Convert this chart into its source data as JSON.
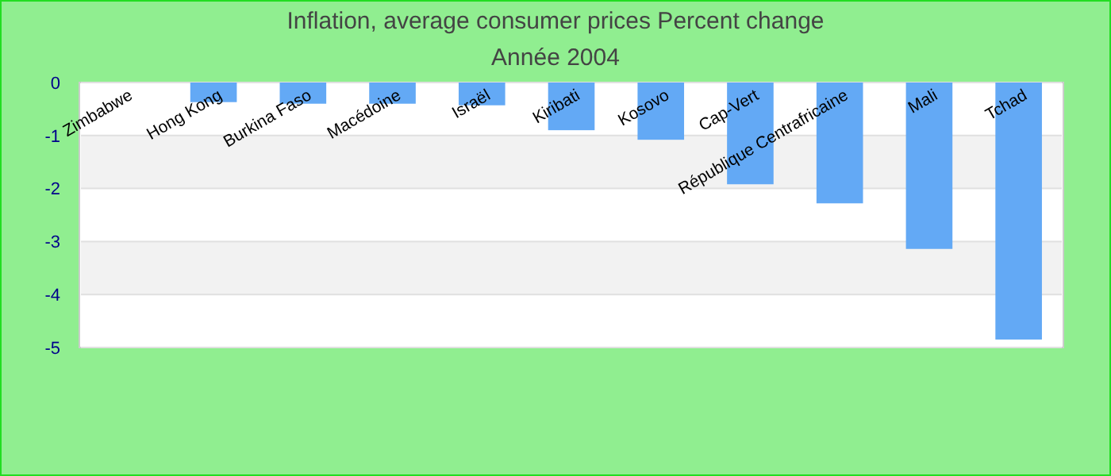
{
  "chart_data": {
    "type": "bar",
    "title": "Inflation, average consumer prices  Percent change",
    "subtitle": "Année 2004",
    "categories": [
      "Zimbabwe",
      "Hong Kong",
      "Burkina Faso",
      "Macédoine",
      "Israël",
      "Kiribati",
      "Kosovo",
      "Cap-Vert",
      "République Centrafricaine",
      "Mali",
      "Tchad"
    ],
    "values": [
      null,
      -0.37,
      -0.4,
      -0.4,
      -0.43,
      -0.9,
      -1.08,
      -1.92,
      -2.28,
      -3.14,
      -4.85
    ],
    "color": "#63a9f5",
    "ylim": [
      -5,
      0
    ],
    "yticks": [
      0,
      -1,
      -2,
      -3,
      -4,
      -5
    ],
    "grid": "y"
  }
}
